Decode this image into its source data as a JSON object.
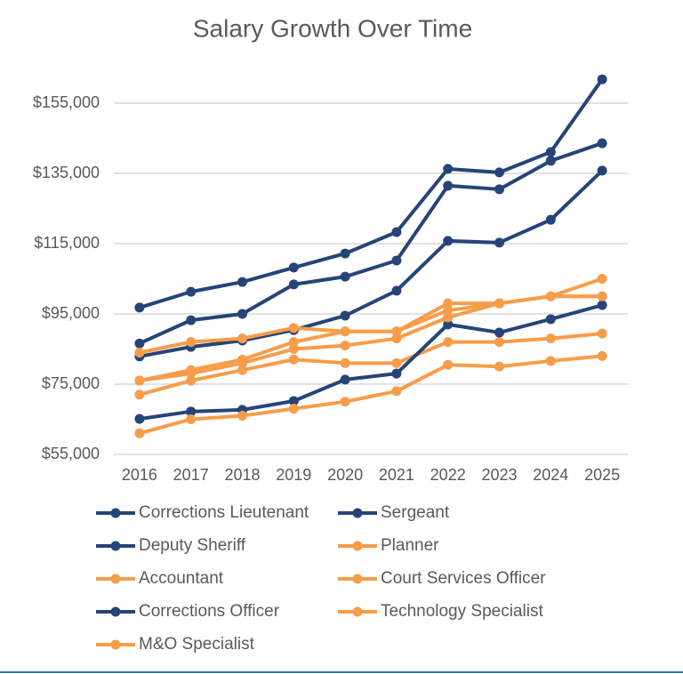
{
  "chart_data": {
    "type": "line",
    "title": "Salary Growth Over Time",
    "categories": [
      "2016",
      "2017",
      "2018",
      "2019",
      "2020",
      "2021",
      "2022",
      "2023",
      "2024",
      "2025"
    ],
    "ylim": [
      55000,
      165000
    ],
    "yticks": [
      {
        "value": 55000,
        "label": "$55,000"
      },
      {
        "value": 75000,
        "label": "$75,000"
      },
      {
        "value": 95000,
        "label": "$95,000"
      },
      {
        "value": 115000,
        "label": "$115,000"
      },
      {
        "value": 135000,
        "label": "$135,000"
      },
      {
        "value": 155000,
        "label": "$155,000"
      }
    ],
    "grid": true,
    "series": [
      {
        "name": "Corrections Lieutenant",
        "color": "#264478",
        "values": [
          96800,
          101300,
          104100,
          108200,
          112200,
          118300,
          136300,
          135300,
          141100,
          161800
        ]
      },
      {
        "name": "Sergeant",
        "color": "#264478",
        "values": [
          86600,
          93200,
          95000,
          103400,
          105600,
          110200,
          131500,
          130500,
          138600,
          143600
        ]
      },
      {
        "name": "Deputy Sheriff",
        "color": "#264478",
        "values": [
          82900,
          85600,
          87400,
          90400,
          94500,
          101600,
          115800,
          115300,
          121800,
          135800
        ]
      },
      {
        "name": "Planner",
        "color": "#f79d4a",
        "values": [
          76000,
          79000,
          82000,
          87000,
          90000,
          90000,
          96000,
          98000,
          100000,
          105000
        ]
      },
      {
        "name": "Accountant",
        "color": "#f79d4a",
        "values": [
          84000,
          87000,
          88000,
          91000,
          90000,
          90000,
          98000,
          98000,
          100000,
          100000
        ]
      },
      {
        "name": "Court Services Officer",
        "color": "#f79d4a",
        "values": [
          72000,
          76000,
          79000,
          82000,
          81000,
          81000,
          87000,
          87000,
          88000,
          89400
        ]
      },
      {
        "name": "Corrections Officer",
        "color": "#264478",
        "values": [
          65100,
          67200,
          67700,
          70200,
          76300,
          78000,
          92000,
          89700,
          93500,
          97500
        ]
      },
      {
        "name": "Technology Specialist",
        "color": "#f79d4a",
        "values": [
          76000,
          78000,
          81000,
          85000,
          86000,
          88000,
          94000,
          98000,
          100000,
          100000
        ]
      },
      {
        "name": "M&O Specialist",
        "color": "#f79d4a",
        "values": [
          61000,
          65000,
          66000,
          68000,
          70000,
          73000,
          80500,
          80000,
          81600,
          83000
        ]
      }
    ]
  }
}
